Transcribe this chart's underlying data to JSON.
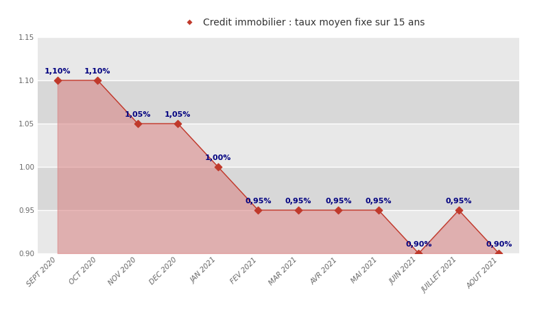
{
  "title": "Credit immobilier : taux moyen fixe sur 15 ans",
  "categories": [
    "SEPT 2020",
    "OCT 2020",
    "NOV 2020",
    "DEC 2020",
    "JAN 2021",
    "FEV 2021",
    "MAR 2021",
    "AVR 2021",
    "MAI 2021",
    "JUIN 2021",
    "JUILLET 2021",
    "AOUT 2021"
  ],
  "values": [
    1.1,
    1.1,
    1.05,
    1.05,
    1.0,
    0.95,
    0.95,
    0.95,
    0.95,
    0.9,
    0.95,
    0.9
  ],
  "labels": [
    "1,10%",
    "1,10%",
    "1,05%",
    "1,05%",
    "1,00%",
    "0,95%",
    "0,95%",
    "0,95%",
    "0,95%",
    "0,90%",
    "0,95%",
    "0,90%"
  ],
  "ylim_min": 0.9,
  "ylim_max": 1.15,
  "yticks": [
    0.9,
    0.95,
    1.0,
    1.05,
    1.1,
    1.15
  ],
  "line_color": "#c0392b",
  "fill_color": "#d98080",
  "fill_alpha": 0.55,
  "marker_color": "#c0392b",
  "label_color": "#000080",
  "fig_bg_color": "#ffffff",
  "plot_bg_upper": "#e8e8e8",
  "plot_bg_lower": "#d8d8d8",
  "grid_color": "#ffffff",
  "title_fontsize": 10,
  "label_fontsize": 8,
  "tick_fontsize": 7.5,
  "legend_marker_size": 5
}
